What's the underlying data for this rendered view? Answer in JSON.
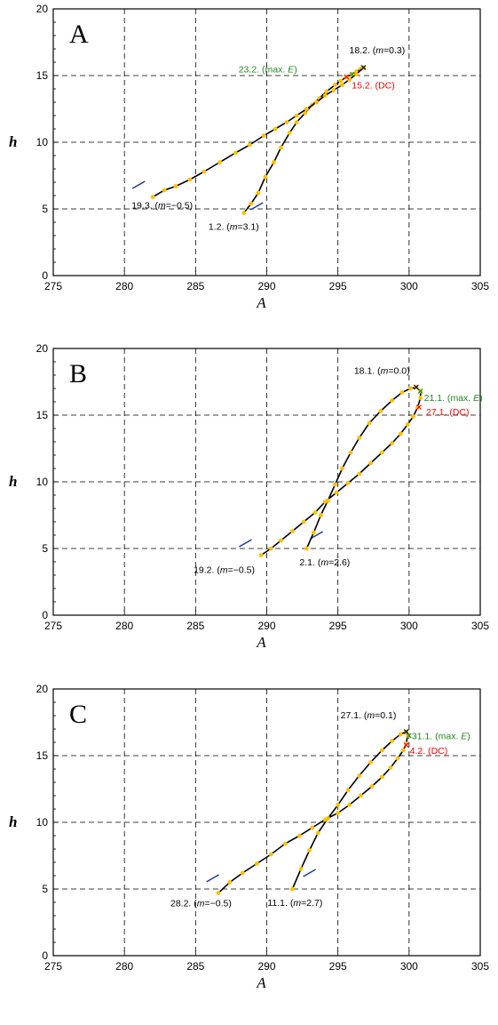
{
  "chart_data": [
    {
      "type": "line",
      "panel_label": "A",
      "xlabel": "A",
      "ylabel": "h",
      "xlim": [
        275,
        305
      ],
      "ylim": [
        0,
        20
      ],
      "xticks": [
        275,
        280,
        285,
        290,
        295,
        300,
        305
      ],
      "yticks": [
        0,
        5,
        10,
        15,
        20
      ],
      "grid": true,
      "colors": {
        "line": "#000000",
        "points": "#ffc000",
        "start_marks": "#1f3a93",
        "max_e": "#228b22",
        "dc": "#ff0000"
      },
      "series": [
        {
          "points": [
            [
              288.4,
              4.7
            ],
            [
              288.9,
              5.4
            ],
            [
              289.4,
              6.2
            ],
            [
              289.9,
              7.4
            ],
            [
              290.5,
              8.5
            ],
            [
              291.0,
              9.6
            ],
            [
              291.6,
              10.7
            ],
            [
              292.1,
              11.5
            ],
            [
              292.7,
              12.2
            ],
            [
              293.2,
              12.8
            ],
            [
              293.7,
              13.3
            ],
            [
              294.2,
              13.8
            ],
            [
              294.8,
              14.3
            ],
            [
              295.2,
              14.6
            ],
            [
              295.6,
              14.9
            ],
            [
              296.0,
              15.1
            ],
            [
              296.3,
              15.3
            ],
            [
              296.6,
              15.5
            ],
            [
              296.8,
              15.6
            ]
          ]
        },
        {
          "points": [
            [
              296.8,
              15.6
            ],
            [
              296.3,
              15.1
            ],
            [
              295.8,
              14.7
            ],
            [
              295.3,
              14.3
            ],
            [
              294.7,
              13.9
            ],
            [
              294.1,
              13.5
            ],
            [
              293.5,
              13.0
            ],
            [
              292.8,
              12.5
            ],
            [
              292.1,
              12.0
            ],
            [
              291.4,
              11.5
            ],
            [
              290.6,
              11.0
            ],
            [
              289.8,
              10.5
            ],
            [
              288.8,
              9.8
            ],
            [
              287.8,
              9.2
            ],
            [
              286.7,
              8.5
            ],
            [
              285.6,
              7.8
            ],
            [
              284.6,
              7.2
            ],
            [
              283.6,
              6.7
            ],
            [
              282.8,
              6.4
            ],
            [
              282.0,
              5.9
            ]
          ]
        }
      ],
      "start_marks": [
        [
          281.0,
          6.8
        ],
        [
          289.3,
          5.2
        ]
      ],
      "annotations": [
        {
          "id": "18.2.",
          "param": "m",
          "value": "0.3",
          "x": 296.8,
          "y": 15.6,
          "color": "#000000",
          "marker": true
        },
        {
          "id": "23.2.",
          "note": "max. E",
          "x": 296.0,
          "y": 15.1,
          "color": "#228b22",
          "marker": true
        },
        {
          "id": "15.2.",
          "note": "DC",
          "x": 295.6,
          "y": 14.9,
          "color": "#ff0000",
          "marker": true
        },
        {
          "id": "19.3.",
          "param": "m",
          "value": "−0.5",
          "x": 282.0,
          "y": 5.9,
          "color": "#000000",
          "marker": false
        },
        {
          "id": "1.2.",
          "param": "m",
          "value": "3.1",
          "x": 288.4,
          "y": 4.7,
          "color": "#000000",
          "marker": false
        }
      ]
    },
    {
      "type": "line",
      "panel_label": "B",
      "xlabel": "A",
      "ylabel": "h",
      "xlim": [
        275,
        305
      ],
      "ylim": [
        0,
        20
      ],
      "xticks": [
        275,
        280,
        285,
        290,
        295,
        300,
        305
      ],
      "yticks": [
        0,
        5,
        10,
        15,
        20
      ],
      "grid": true,
      "colors": {
        "line": "#000000",
        "points": "#ffc000",
        "start_marks": "#1f3a93",
        "max_e": "#228b22",
        "dc": "#ff0000"
      },
      "series": [
        {
          "points": [
            [
              292.8,
              5.0
            ],
            [
              293.3,
              6.2
            ],
            [
              293.8,
              7.5
            ],
            [
              294.3,
              8.6
            ],
            [
              294.8,
              9.8
            ],
            [
              295.3,
              11.0
            ],
            [
              295.9,
              12.2
            ],
            [
              296.5,
              13.3
            ],
            [
              297.2,
              14.4
            ],
            [
              298.0,
              15.3
            ],
            [
              298.8,
              16.1
            ],
            [
              299.5,
              16.7
            ],
            [
              300.1,
              17.0
            ],
            [
              300.5,
              17.1
            ],
            [
              300.8,
              16.8
            ],
            [
              300.8,
              16.3
            ],
            [
              300.6,
              15.6
            ],
            [
              300.3,
              14.9
            ],
            [
              299.9,
              14.3
            ],
            [
              299.4,
              13.6
            ],
            [
              298.8,
              12.9
            ],
            [
              298.1,
              12.2
            ],
            [
              297.3,
              11.4
            ],
            [
              296.5,
              10.6
            ],
            [
              295.7,
              9.9
            ],
            [
              294.9,
              9.2
            ],
            [
              294.1,
              8.5
            ],
            [
              293.4,
              7.7
            ],
            [
              292.6,
              7.0
            ],
            [
              291.8,
              6.3
            ],
            [
              291.0,
              5.6
            ],
            [
              290.3,
              5.0
            ],
            [
              289.6,
              4.5
            ]
          ]
        }
      ],
      "start_marks": [
        [
          288.5,
          5.4
        ],
        [
          293.5,
          6.0
        ]
      ],
      "annotations": [
        {
          "id": "18.1.",
          "param": "m",
          "value": "0.0",
          "x": 300.5,
          "y": 17.1,
          "color": "#000000",
          "marker": true
        },
        {
          "id": "21.1.",
          "note": "max. E",
          "x": 300.8,
          "y": 16.8,
          "color": "#228b22",
          "marker": true
        },
        {
          "id": "27.1.",
          "note": "DC",
          "x": 300.7,
          "y": 15.6,
          "color": "#ff0000",
          "marker": true
        },
        {
          "id": "19.2.",
          "param": "m",
          "value": "−0.5",
          "x": 289.6,
          "y": 4.5,
          "color": "#000000",
          "marker": false
        },
        {
          "id": "2.1.",
          "param": "m",
          "value": "2.6",
          "x": 292.8,
          "y": 5.0,
          "color": "#000000",
          "marker": false
        }
      ]
    },
    {
      "type": "line",
      "panel_label": "C",
      "xlabel": "A",
      "ylabel": "h",
      "xlim": [
        275,
        305
      ],
      "ylim": [
        0,
        20
      ],
      "xticks": [
        275,
        280,
        285,
        290,
        295,
        300,
        305
      ],
      "yticks": [
        0,
        5,
        10,
        15,
        20
      ],
      "grid": true,
      "colors": {
        "line": "#000000",
        "points": "#ffc000",
        "start_marks": "#1f3a93",
        "max_e": "#228b22",
        "dc": "#ff0000"
      },
      "series": [
        {
          "points": [
            [
              291.8,
              5.0
            ],
            [
              292.4,
              6.5
            ],
            [
              293.0,
              7.9
            ],
            [
              293.6,
              9.2
            ],
            [
              294.3,
              10.3
            ],
            [
              295.0,
              11.3
            ],
            [
              295.7,
              12.4
            ],
            [
              296.5,
              13.5
            ],
            [
              297.3,
              14.5
            ],
            [
              298.1,
              15.4
            ],
            [
              298.8,
              16.1
            ],
            [
              299.4,
              16.6
            ],
            [
              299.8,
              16.8
            ],
            [
              299.9,
              16.5
            ],
            [
              299.8,
              15.9
            ],
            [
              299.6,
              15.4
            ],
            [
              299.2,
              14.8
            ],
            [
              298.7,
              14.1
            ],
            [
              298.1,
              13.4
            ],
            [
              297.4,
              12.7
            ],
            [
              296.6,
              12.0
            ],
            [
              295.8,
              11.3
            ],
            [
              295.0,
              10.7
            ],
            [
              294.1,
              10.2
            ],
            [
              293.2,
              9.6
            ],
            [
              292.3,
              9.0
            ],
            [
              291.3,
              8.4
            ],
            [
              290.3,
              7.6
            ],
            [
              289.3,
              6.9
            ],
            [
              288.3,
              6.2
            ],
            [
              287.4,
              5.5
            ],
            [
              286.6,
              4.7
            ]
          ]
        }
      ],
      "start_marks": [
        [
          286.2,
          5.8
        ],
        [
          293.0,
          6.2
        ]
      ],
      "annotations": [
        {
          "id": "27.1.",
          "param": "m",
          "value": "0.1",
          "x": 299.8,
          "y": 16.8,
          "color": "#000000",
          "marker": true
        },
        {
          "id": "31.1.",
          "note": "max. E",
          "x": 300.0,
          "y": 16.5,
          "color": "#228b22",
          "marker": true
        },
        {
          "id": "4.2.",
          "note": "DC",
          "x": 299.8,
          "y": 15.8,
          "color": "#ff0000",
          "marker": true
        },
        {
          "id": "28.2.",
          "param": "m",
          "value": "−0.5",
          "x": 286.6,
          "y": 4.7,
          "color": "#000000",
          "marker": false
        },
        {
          "id": "11.1.",
          "param": "m",
          "value": "2.7",
          "x": 291.8,
          "y": 5.0,
          "color": "#000000",
          "marker": false
        }
      ]
    }
  ]
}
